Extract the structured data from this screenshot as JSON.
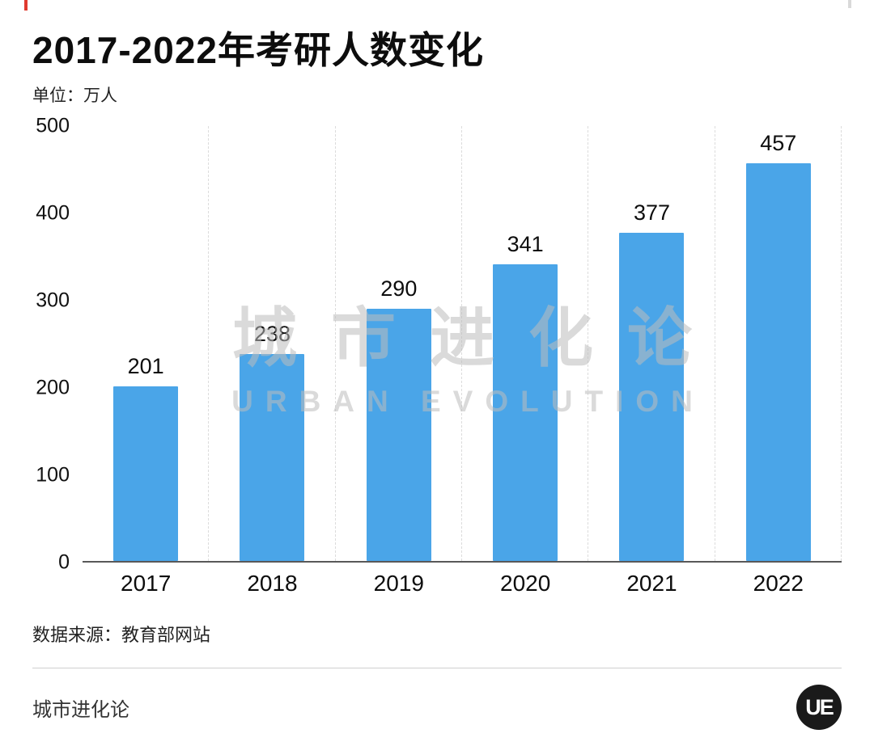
{
  "page": {
    "title": "2017-2022年考研人数变化",
    "unit_label": "单位：万人",
    "source": "数据来源：教育部网站",
    "footer_brand": "城市进化论",
    "logo_text": "UE"
  },
  "watermark": {
    "line1": "城市进化论",
    "line2": "URBAN EVOLUTION"
  },
  "chart_data": {
    "type": "bar",
    "title": "2017-2022年考研人数变化",
    "unit": "万人",
    "categories": [
      "2017",
      "2018",
      "2019",
      "2020",
      "2021",
      "2022"
    ],
    "values": [
      201,
      238,
      290,
      341,
      377,
      457
    ],
    "xlabel": "",
    "ylabel": "万人",
    "ylim": [
      0,
      500
    ],
    "yticks": [
      0,
      100,
      200,
      300,
      400,
      500
    ],
    "bar_color": "#4aa5e8",
    "grid": "vertical-dashed",
    "value_labels": true,
    "legend": "none"
  }
}
